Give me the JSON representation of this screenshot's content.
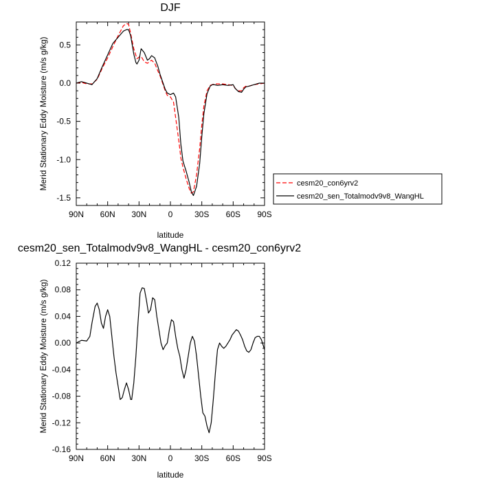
{
  "chart_data": [
    {
      "type": "line",
      "title": "DJF",
      "xlabel": "latitude",
      "ylabel": "Merid Stationary Eddy Moisture (m/s g/kg)",
      "xlim": [
        -90,
        90
      ],
      "ylim": [
        -1.6,
        0.8
      ],
      "x_tick_labels": [
        "90N",
        "60N",
        "30N",
        "0",
        "30S",
        "60S",
        "90S"
      ],
      "x_tick_values": [
        -90,
        -60,
        -30,
        0,
        30,
        60,
        90
      ],
      "y_tick_labels": [
        "-1.5",
        "-1.0",
        "-0.5",
        "0.0",
        "0.5"
      ],
      "y_tick_values": [
        -1.5,
        -1.0,
        -0.5,
        0.0,
        0.5
      ],
      "legend_position": "right",
      "series": [
        {
          "name": "cesm20_con6yrv2",
          "color": "#ff0000",
          "style": "dashed",
          "x": [
            -90,
            -85,
            -80,
            -75,
            -70,
            -65,
            -60,
            -55,
            -50,
            -45,
            -42,
            -40,
            -38,
            -35,
            -32,
            -30,
            -28,
            -25,
            -22,
            -20,
            -18,
            -15,
            -12,
            -10,
            -8,
            -5,
            -3,
            0,
            3,
            5,
            8,
            10,
            12,
            15,
            18,
            20,
            22,
            25,
            28,
            30,
            32,
            35,
            38,
            40,
            42,
            45,
            50,
            55,
            60,
            62,
            65,
            68,
            70,
            72,
            75,
            80,
            85,
            90
          ],
          "y": [
            0.0,
            0.01,
            -0.01,
            -0.01,
            0.05,
            0.2,
            0.33,
            0.48,
            0.62,
            0.75,
            0.78,
            0.77,
            0.65,
            0.45,
            0.32,
            0.34,
            0.35,
            0.28,
            0.26,
            0.28,
            0.3,
            0.26,
            0.16,
            0.1,
            0.02,
            -0.1,
            -0.16,
            -0.18,
            -0.25,
            -0.45,
            -0.75,
            -0.98,
            -1.1,
            -1.25,
            -1.38,
            -1.44,
            -1.42,
            -1.2,
            -0.85,
            -0.55,
            -0.3,
            -0.1,
            -0.03,
            -0.02,
            -0.01,
            -0.01,
            -0.01,
            -0.02,
            -0.03,
            -0.07,
            -0.1,
            -0.1,
            -0.06,
            -0.04,
            -0.04,
            -0.02,
            -0.01,
            0.0
          ]
        },
        {
          "name": "cesm20_sen_Totalmodv9v8_WangHL",
          "color": "#000000",
          "style": "solid",
          "x": [
            -90,
            -85,
            -80,
            -75,
            -70,
            -65,
            -60,
            -55,
            -50,
            -45,
            -42,
            -40,
            -38,
            -35,
            -33,
            -32,
            -30,
            -28,
            -25,
            -22,
            -20,
            -18,
            -15,
            -12,
            -10,
            -8,
            -5,
            -3,
            0,
            3,
            5,
            8,
            10,
            12,
            15,
            18,
            20,
            22,
            25,
            28,
            30,
            32,
            35,
            38,
            40,
            42,
            45,
            50,
            55,
            60,
            62,
            65,
            68,
            70,
            72,
            75,
            80,
            85,
            90
          ],
          "y": [
            0.0,
            0.02,
            0.0,
            -0.02,
            0.06,
            0.22,
            0.37,
            0.52,
            0.6,
            0.68,
            0.7,
            0.7,
            0.62,
            0.38,
            0.27,
            0.25,
            0.3,
            0.45,
            0.4,
            0.3,
            0.32,
            0.36,
            0.33,
            0.22,
            0.12,
            0.04,
            -0.08,
            -0.13,
            -0.15,
            -0.13,
            -0.18,
            -0.45,
            -0.8,
            -1.02,
            -1.15,
            -1.3,
            -1.42,
            -1.47,
            -1.35,
            -1.05,
            -0.7,
            -0.4,
            -0.14,
            -0.04,
            -0.02,
            -0.02,
            -0.03,
            -0.02,
            -0.03,
            -0.02,
            -0.07,
            -0.11,
            -0.12,
            -0.08,
            -0.05,
            -0.04,
            -0.02,
            0.0,
            0.0
          ]
        }
      ]
    },
    {
      "type": "line",
      "title": "cesm20_sen_Totalmodv9v8_WangHL - cesm20_con6yrv2",
      "xlabel": "latitude",
      "ylabel": "Merid Stationary Eddy Moisture (m/s g/kg)",
      "xlim": [
        -90,
        90
      ],
      "ylim": [
        -0.16,
        0.12
      ],
      "x_tick_labels": [
        "90N",
        "60N",
        "30N",
        "0",
        "30S",
        "60S",
        "90S"
      ],
      "x_tick_values": [
        -90,
        -60,
        -30,
        0,
        30,
        60,
        90
      ],
      "y_tick_labels": [
        "-0.16",
        "-0.12",
        "-0.08",
        "-0.04",
        "0.00",
        "0.04",
        "0.08",
        "0.12"
      ],
      "y_tick_values": [
        -0.16,
        -0.12,
        -0.08,
        -0.04,
        0.0,
        0.04,
        0.08,
        0.12
      ],
      "series": [
        {
          "color": "#000000",
          "style": "solid",
          "x": [
            -90,
            -85,
            -80,
            -77,
            -75,
            -72,
            -70,
            -68,
            -66,
            -64,
            -62,
            -60,
            -58,
            -56,
            -54,
            -52,
            -50,
            -48,
            -46,
            -44,
            -42,
            -40,
            -38,
            -37,
            -35,
            -33,
            -31,
            -29,
            -27,
            -25,
            -23,
            -21,
            -19,
            -17,
            -15,
            -13,
            -11,
            -9,
            -7,
            -5,
            -3,
            -1,
            1,
            3,
            5,
            7,
            9,
            11,
            13,
            15,
            17,
            19,
            21,
            23,
            25,
            27,
            29,
            31,
            33,
            35,
            37,
            39,
            41,
            43,
            45,
            47,
            49,
            51,
            53,
            55,
            57,
            59,
            61,
            63,
            65,
            67,
            69,
            71,
            73,
            75,
            77,
            79,
            81,
            83,
            85,
            87,
            89,
            90
          ],
          "y": [
            0.0,
            0.004,
            0.003,
            0.01,
            0.03,
            0.055,
            0.06,
            0.05,
            0.03,
            0.022,
            0.04,
            0.05,
            0.04,
            0.01,
            -0.02,
            -0.045,
            -0.065,
            -0.085,
            -0.082,
            -0.07,
            -0.06,
            -0.07,
            -0.085,
            -0.085,
            -0.06,
            -0.02,
            0.03,
            0.075,
            0.083,
            0.082,
            0.065,
            0.045,
            0.05,
            0.068,
            0.065,
            0.04,
            0.02,
            0.0,
            -0.01,
            -0.004,
            0.0,
            0.02,
            0.035,
            0.032,
            0.01,
            -0.008,
            -0.02,
            -0.04,
            -0.053,
            -0.04,
            -0.02,
            0.0,
            0.01,
            0.003,
            -0.02,
            -0.05,
            -0.08,
            -0.105,
            -0.11,
            -0.125,
            -0.135,
            -0.12,
            -0.085,
            -0.045,
            -0.01,
            0.0,
            -0.005,
            -0.008,
            -0.005,
            0.0,
            0.005,
            0.012,
            0.016,
            0.02,
            0.018,
            0.012,
            0.005,
            -0.005,
            -0.012,
            -0.014,
            -0.01,
            0.0,
            0.008,
            0.01,
            0.01,
            0.005,
            -0.005,
            -0.01
          ]
        }
      ]
    }
  ],
  "legend": {
    "items": [
      {
        "label": "cesm20_con6yrv2"
      },
      {
        "label": "cesm20_sen_Totalmodv9v8_WangHL"
      }
    ]
  }
}
